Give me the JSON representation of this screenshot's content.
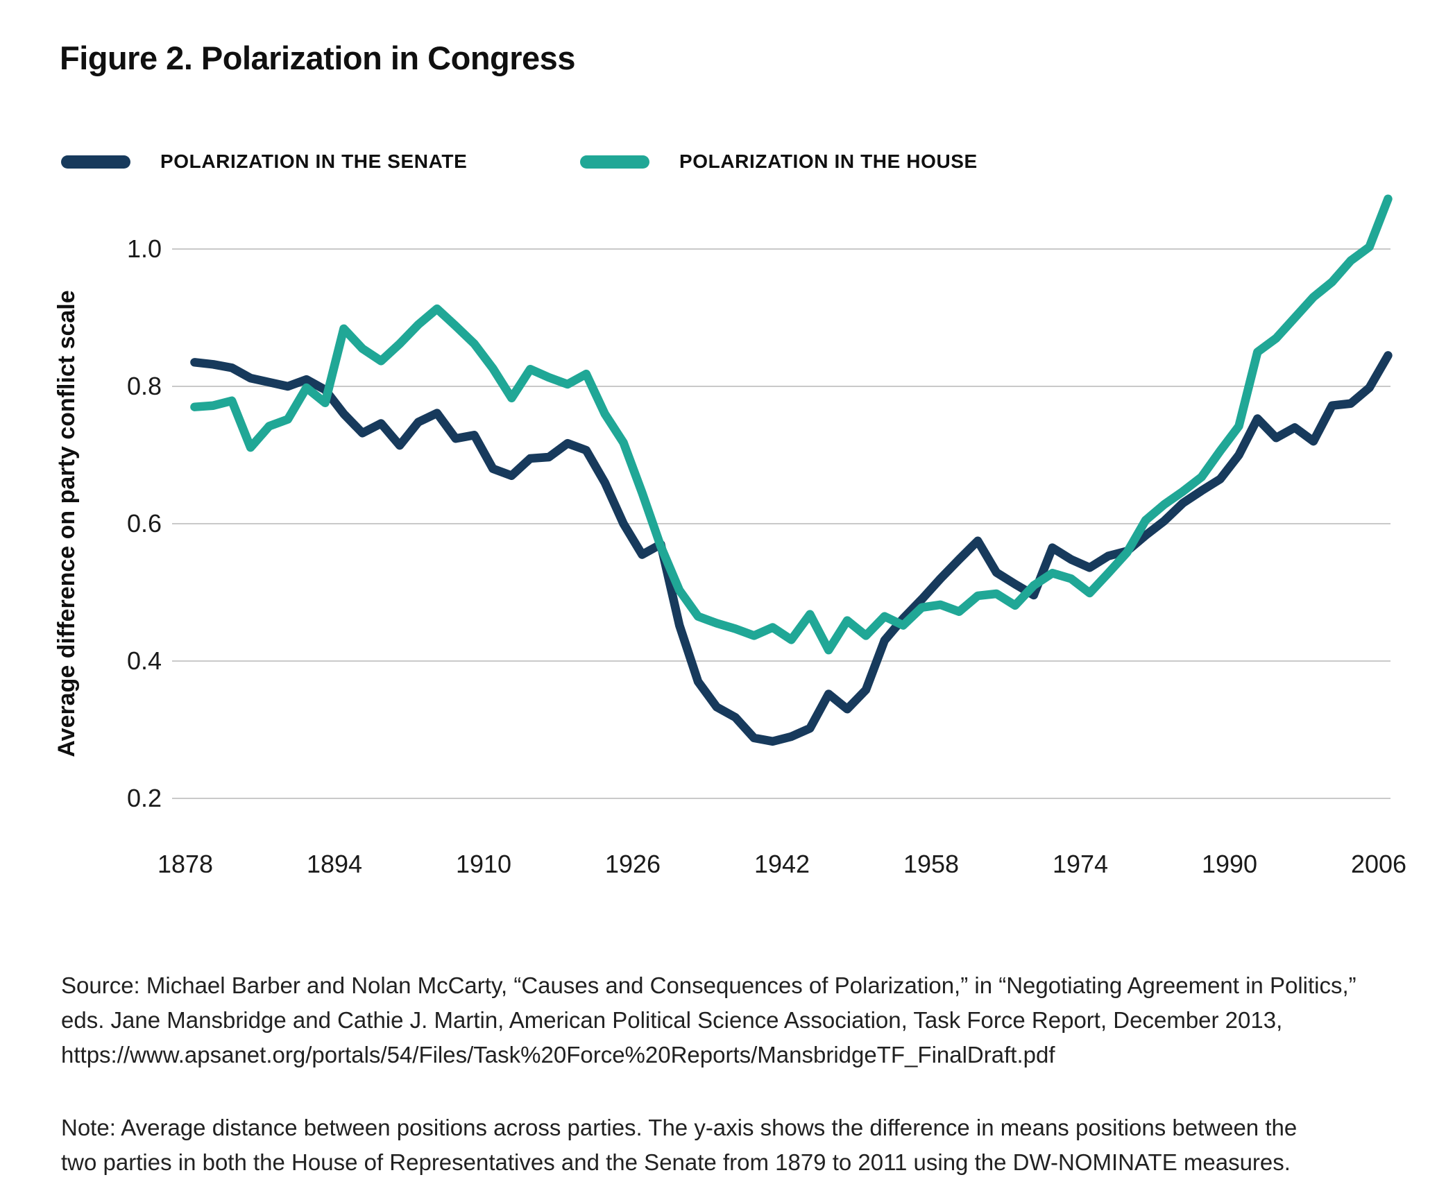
{
  "figure_title": "Figure 2. Polarization in Congress",
  "legend": {
    "senate": {
      "label": "POLARIZATION IN THE SENATE",
      "color": "#173A5C"
    },
    "house": {
      "label": "POLARIZATION IN THE HOUSE",
      "color": "#20A796"
    }
  },
  "y_axis": {
    "title": "Average difference on party conflict scale",
    "tick_labels": [
      "1.0",
      "0.8",
      "0.6",
      "0.4",
      "0.2"
    ],
    "tick_values": [
      1.0,
      0.8,
      0.6,
      0.4,
      0.2
    ]
  },
  "x_axis": {
    "tick_labels": [
      "1878",
      "1894",
      "1910",
      "1926",
      "1942",
      "1958",
      "1974",
      "1990",
      "2006"
    ],
    "tick_values": [
      1878,
      1894,
      1910,
      1926,
      1942,
      1958,
      1974,
      1990,
      2006
    ]
  },
  "source_lines": [
    "Source: Michael Barber and Nolan McCarty, “Causes and Consequences of Polarization,” in “Negotiating Agreement in Politics,”",
    "eds. Jane Mansbridge and Cathie J. Martin, American Political Science Association, Task Force Report, December 2013,",
    "https://www.apsanet.org/portals/54/Files/Task%20Force%20Reports/MansbridgeTF_FinalDraft.pdf"
  ],
  "note_lines": [
    "Note: Average distance between positions across parties. The y-axis shows the difference in means positions between the",
    "two parties in both the House of Representatives and the Senate from 1879 to 2011 using the DW-NOMINATE measures."
  ],
  "chart_data": {
    "type": "line",
    "title": "Figure 2. Polarization in Congress",
    "xlabel": "",
    "ylabel": "Average difference on party conflict scale",
    "xlim": [
      1877,
      2008
    ],
    "ylim": [
      0.2,
      1.0
    ],
    "grid": "horizontal",
    "legend_position": "top",
    "x": [
      1879,
      1881,
      1883,
      1885,
      1887,
      1889,
      1891,
      1893,
      1895,
      1897,
      1899,
      1901,
      1903,
      1905,
      1907,
      1909,
      1911,
      1913,
      1915,
      1917,
      1919,
      1921,
      1923,
      1925,
      1927,
      1929,
      1931,
      1933,
      1935,
      1937,
      1939,
      1941,
      1943,
      1945,
      1947,
      1949,
      1951,
      1953,
      1955,
      1957,
      1959,
      1961,
      1963,
      1965,
      1967,
      1969,
      1971,
      1973,
      1975,
      1977,
      1979,
      1981,
      1983,
      1985,
      1987,
      1989,
      1991,
      1993,
      1995,
      1997,
      1999,
      2001,
      2003,
      2005,
      2007
    ],
    "series": [
      {
        "name": "POLARIZATION IN THE SENATE",
        "color": "#173A5C",
        "values": [
          0.835,
          0.832,
          0.827,
          0.812,
          0.806,
          0.8,
          0.81,
          0.795,
          0.76,
          0.732,
          0.746,
          0.714,
          0.748,
          0.761,
          0.724,
          0.729,
          0.68,
          0.67,
          0.695,
          0.697,
          0.717,
          0.707,
          0.66,
          0.6,
          0.555,
          0.57,
          0.452,
          0.37,
          0.333,
          0.318,
          0.288,
          0.283,
          0.29,
          0.302,
          0.352,
          0.33,
          0.358,
          0.43,
          0.462,
          0.49,
          0.52,
          0.548,
          0.575,
          0.529,
          0.512,
          0.496,
          0.565,
          0.548,
          0.536,
          0.553,
          0.56,
          0.583,
          0.604,
          0.63,
          0.648,
          0.665,
          0.7,
          0.753,
          0.725,
          0.74,
          0.72,
          0.772,
          0.775,
          0.798,
          0.845
        ]
      },
      {
        "name": "POLARIZATION IN THE HOUSE",
        "color": "#20A796",
        "values": [
          0.77,
          0.772,
          0.779,
          0.711,
          0.742,
          0.752,
          0.798,
          0.776,
          0.884,
          0.855,
          0.837,
          0.862,
          0.89,
          0.913,
          0.888,
          0.862,
          0.826,
          0.783,
          0.825,
          0.813,
          0.803,
          0.818,
          0.76,
          0.718,
          0.645,
          0.567,
          0.503,
          0.465,
          0.455,
          0.447,
          0.437,
          0.449,
          0.431,
          0.468,
          0.416,
          0.459,
          0.437,
          0.465,
          0.452,
          0.478,
          0.482,
          0.472,
          0.495,
          0.498,
          0.481,
          0.51,
          0.528,
          0.52,
          0.499,
          0.528,
          0.558,
          0.605,
          0.628,
          0.647,
          0.668,
          0.706,
          0.742,
          0.85,
          0.87,
          0.9,
          0.93,
          0.952,
          0.983,
          1.003,
          1.073
        ]
      }
    ]
  }
}
